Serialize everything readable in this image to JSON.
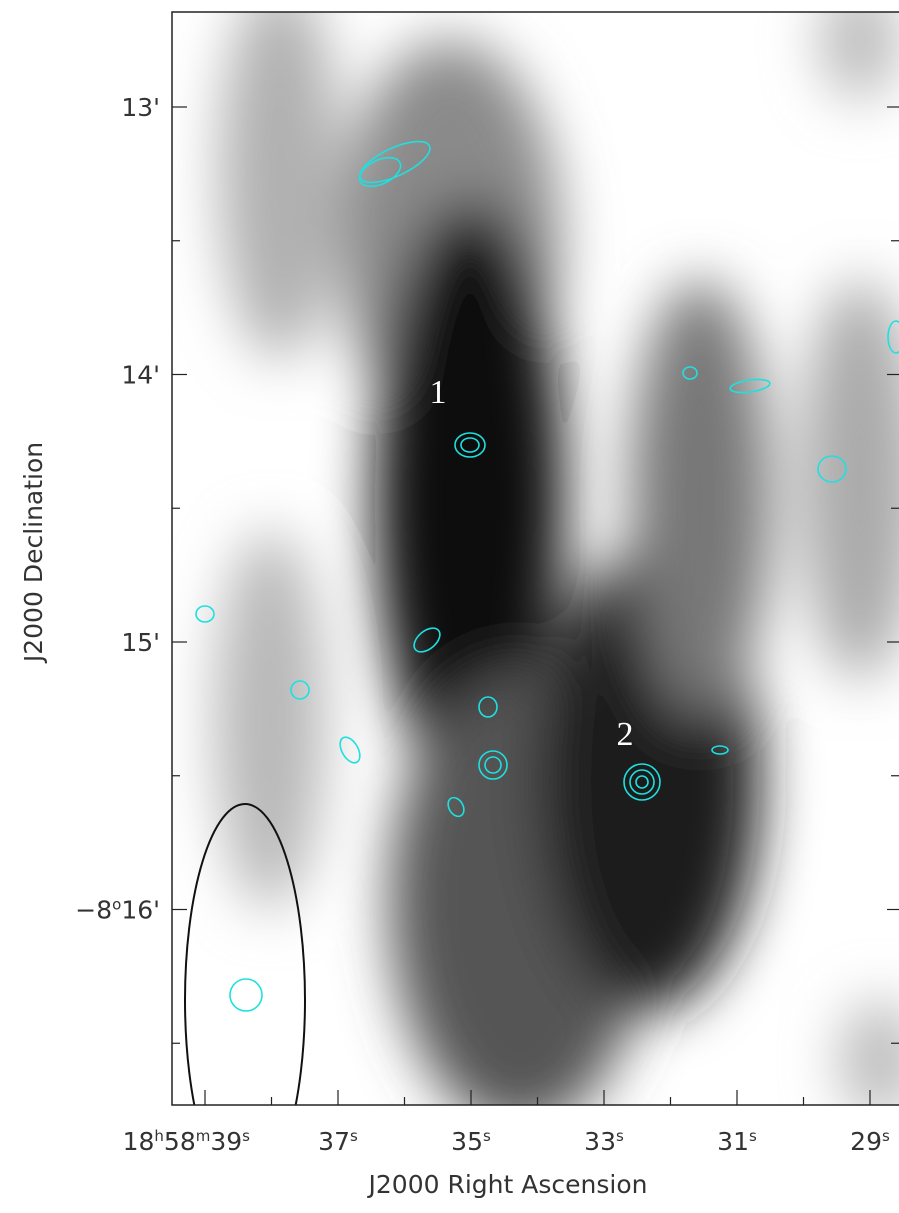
{
  "figure": {
    "x_axis": {
      "label": "J2000 Right Ascension",
      "ticks": [
        [
          {
            "text": "18",
            "sup": false
          },
          {
            "text": "h",
            "sup": true
          },
          {
            "text": "58",
            "sup": false
          },
          {
            "text": "m",
            "sup": true
          },
          {
            "text": "39",
            "sup": false
          },
          {
            "text": "s",
            "sup": true
          }
        ],
        [
          {
            "text": "37",
            "sup": false
          },
          {
            "text": "s",
            "sup": true
          }
        ],
        [
          {
            "text": "35",
            "sup": false
          },
          {
            "text": "s",
            "sup": true
          }
        ],
        [
          {
            "text": "33",
            "sup": false
          },
          {
            "text": "s",
            "sup": true
          }
        ],
        [
          {
            "text": "31",
            "sup": false
          },
          {
            "text": "s",
            "sup": true
          }
        ],
        [
          {
            "text": "29",
            "sup": false
          },
          {
            "text": "s",
            "sup": true
          }
        ]
      ]
    },
    "y_axis": {
      "label": "J2000 Declination",
      "ticks": [
        [
          {
            "text": "13'",
            "sup": false
          }
        ],
        [
          {
            "text": "14'",
            "sup": false
          }
        ],
        [
          {
            "text": "15'",
            "sup": false
          }
        ],
        [
          {
            "text": "−8",
            "sup": false
          },
          {
            "text": "o",
            "sup": true
          },
          {
            "text": "16'",
            "sup": false
          }
        ]
      ]
    },
    "annotations": [
      "1",
      "2"
    ]
  }
}
